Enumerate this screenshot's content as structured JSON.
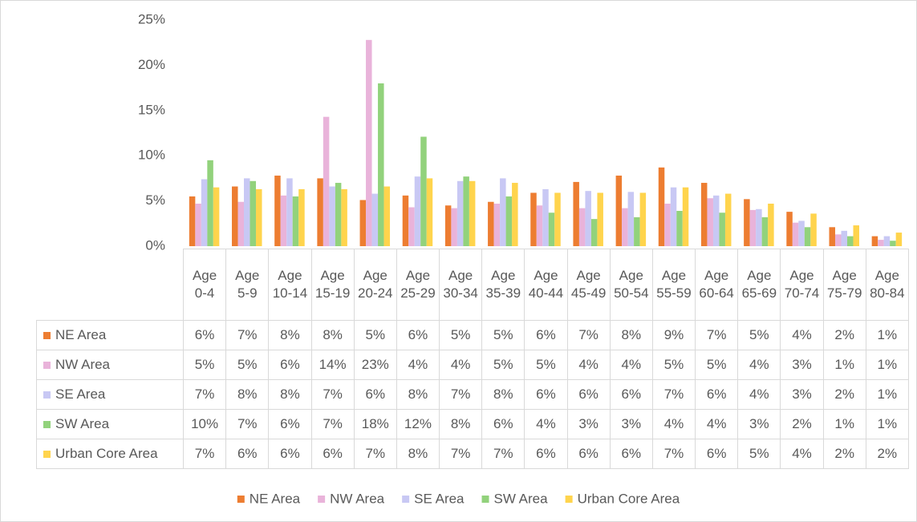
{
  "chart_data": {
    "type": "bar",
    "categories": [
      "Age 0-4",
      "Age 5-9",
      "Age 10-14",
      "Age 15-19",
      "Age 20-24",
      "Age 25-29",
      "Age 30-34",
      "Age 35-39",
      "Age 40-44",
      "Age 45-49",
      "Age 50-54",
      "Age 55-59",
      "Age 60-64",
      "Age 65-69",
      "Age 70-74",
      "Age 75-79",
      "Age 80-84"
    ],
    "series": [
      {
        "name": "NE Area",
        "color": "#ed7d31",
        "values": [
          5.5,
          6.6,
          7.8,
          7.5,
          5.1,
          5.6,
          4.5,
          4.9,
          5.9,
          7.1,
          7.8,
          8.7,
          7.0,
          5.2,
          3.8,
          2.1,
          1.1
        ],
        "value_labels": [
          "6%",
          "7%",
          "8%",
          "8%",
          "5%",
          "6%",
          "5%",
          "5%",
          "6%",
          "7%",
          "8%",
          "9%",
          "7%",
          "5%",
          "4%",
          "2%",
          "1%"
        ]
      },
      {
        "name": "NW Area",
        "color": "#e9b3da",
        "values": [
          4.7,
          4.9,
          5.6,
          14.3,
          22.8,
          4.3,
          4.2,
          4.7,
          4.5,
          4.2,
          4.2,
          4.7,
          5.3,
          4.0,
          2.6,
          1.3,
          0.7
        ],
        "value_labels": [
          "5%",
          "5%",
          "6%",
          "14%",
          "23%",
          "4%",
          "4%",
          "5%",
          "5%",
          "4%",
          "4%",
          "5%",
          "5%",
          "4%",
          "3%",
          "1%",
          "1%"
        ]
      },
      {
        "name": "SE Area",
        "color": "#c8c8f4",
        "values": [
          7.4,
          7.5,
          7.5,
          6.6,
          5.8,
          7.7,
          7.2,
          7.5,
          6.3,
          6.1,
          6.0,
          6.5,
          5.6,
          4.1,
          2.8,
          1.7,
          1.1
        ],
        "value_labels": [
          "7%",
          "8%",
          "8%",
          "7%",
          "6%",
          "8%",
          "7%",
          "8%",
          "6%",
          "6%",
          "6%",
          "7%",
          "6%",
          "4%",
          "3%",
          "2%",
          "1%"
        ]
      },
      {
        "name": "SW Area",
        "color": "#92d27c",
        "values": [
          9.5,
          7.2,
          5.5,
          7.0,
          18.0,
          12.1,
          7.7,
          5.5,
          3.7,
          3.0,
          3.2,
          3.9,
          3.7,
          3.2,
          2.1,
          1.1,
          0.6
        ],
        "value_labels": [
          "10%",
          "7%",
          "6%",
          "7%",
          "18%",
          "12%",
          "8%",
          "6%",
          "4%",
          "3%",
          "3%",
          "4%",
          "4%",
          "3%",
          "2%",
          "1%",
          "1%"
        ]
      },
      {
        "name": "Urban Core Area",
        "color": "#ffd44d",
        "values": [
          6.5,
          6.3,
          6.3,
          6.3,
          6.6,
          7.5,
          7.2,
          7.0,
          5.9,
          5.9,
          5.9,
          6.5,
          5.8,
          4.7,
          3.6,
          2.3,
          1.5
        ],
        "value_labels": [
          "7%",
          "6%",
          "6%",
          "6%",
          "7%",
          "8%",
          "7%",
          "7%",
          "6%",
          "6%",
          "6%",
          "7%",
          "6%",
          "5%",
          "4%",
          "2%",
          "2%"
        ]
      }
    ],
    "ylim": [
      0,
      25
    ],
    "yticks": [
      {
        "value": 0,
        "label": "0%"
      },
      {
        "value": 5,
        "label": "5%"
      },
      {
        "value": 10,
        "label": "10%"
      },
      {
        "value": 15,
        "label": "15%"
      },
      {
        "value": 20,
        "label": "20%"
      },
      {
        "value": 25,
        "label": "25%"
      }
    ],
    "grid": false,
    "legend": "bottom"
  }
}
